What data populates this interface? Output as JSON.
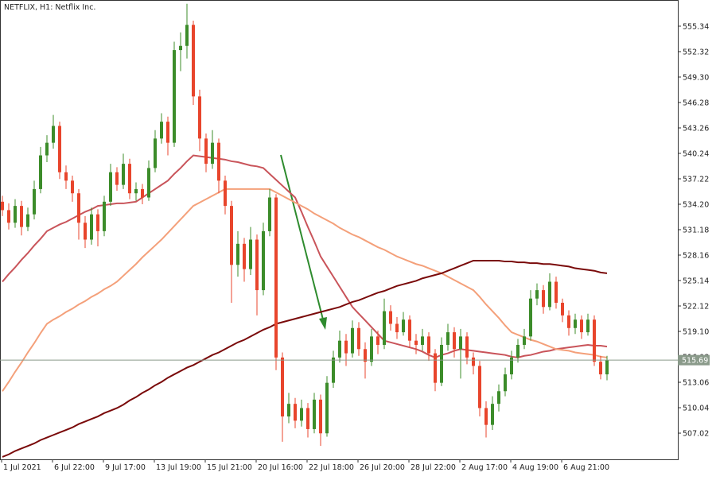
{
  "chart_data": {
    "type": "candlestick",
    "title": "NETFLIX, H1:  Netflix Inc.",
    "categories": [
      "1 Jul 2021",
      null,
      null,
      null,
      null,
      null,
      null,
      null,
      "6 Jul 22:00",
      null,
      null,
      null,
      null,
      null,
      null,
      null,
      "9 Jul 17:00",
      null,
      null,
      null,
      null,
      null,
      null,
      null,
      "13 Jul 19:00",
      null,
      null,
      null,
      null,
      null,
      null,
      null,
      "15 Jul 21:00",
      null,
      null,
      null,
      null,
      null,
      null,
      null,
      "20 Jul 16:00",
      null,
      null,
      null,
      null,
      null,
      null,
      null,
      "22 Jul 18:00",
      null,
      null,
      null,
      null,
      null,
      null,
      null,
      "26 Jul 20:00",
      null,
      null,
      null,
      null,
      null,
      null,
      null,
      "28 Jul 22:00",
      null,
      null,
      null,
      null,
      null,
      null,
      null,
      "2 Aug 17:00",
      null,
      null,
      null,
      null,
      null,
      null,
      null,
      "4 Aug 19:00",
      null,
      null,
      null,
      null,
      null,
      null,
      null,
      "6 Aug 21:00",
      null,
      null,
      null,
      null,
      null,
      null,
      null
    ],
    "open": [
      534.5,
      533.5,
      532.0,
      534.0,
      531.5,
      533.0,
      536.0,
      540.0,
      541.5,
      543.5,
      538.0,
      537.0,
      535.5,
      532.0,
      530.0,
      533.0,
      531.0,
      534.5,
      538.0,
      536.5,
      539.0,
      535.5,
      536.0,
      535.0,
      538.5,
      542.0,
      544.0,
      541.5,
      552.5,
      553.0,
      555.5,
      547.0,
      542.0,
      539.0,
      541.5,
      537.0,
      534.0,
      527.0,
      529.5,
      526.5,
      530.0,
      524.0,
      531.0,
      535.0,
      516.0,
      509.0,
      510.5,
      508.5,
      510.0,
      507.5,
      511.0,
      507.0,
      513.0,
      516.0,
      518.0,
      516.5,
      519.5,
      517.0,
      515.5,
      518.5,
      517.5,
      521.5,
      520.0,
      519.0,
      520.5,
      518.0,
      517.5,
      518.5,
      516.5,
      513.0,
      517.5,
      519.0,
      517.0,
      518.5,
      516.0,
      515.0,
      510.0,
      508.0,
      510.5,
      512.0,
      514.0,
      516.0,
      517.5,
      518.5,
      523.0,
      524.0,
      522.0,
      525.0,
      522.5,
      521.0,
      519.5,
      520.5,
      519.0,
      520.5,
      515.5,
      514.0
    ],
    "high": [
      535.2,
      534.3,
      534.8,
      534.6,
      533.8,
      537.0,
      541.0,
      542.4,
      544.8,
      544.0,
      538.8,
      537.6,
      536.0,
      532.8,
      533.8,
      533.6,
      535.2,
      539.0,
      538.6,
      540.2,
      539.6,
      536.8,
      536.6,
      539.4,
      543.0,
      545.0,
      544.6,
      553.5,
      554.6,
      558.0,
      556.0,
      547.8,
      542.6,
      543.0,
      542.0,
      537.6,
      534.6,
      531.0,
      530.2,
      531.5,
      530.6,
      532.0,
      536.0,
      535.4,
      516.6,
      511.8,
      511.2,
      511.0,
      510.6,
      511.8,
      511.6,
      513.8,
      516.8,
      519.2,
      518.8,
      520.4,
      520.2,
      517.8,
      519.4,
      519.2,
      523.0,
      522.2,
      520.8,
      521.4,
      521.0,
      518.8,
      519.4,
      519.0,
      517.0,
      518.4,
      520.0,
      519.6,
      519.4,
      519.0,
      516.6,
      515.6,
      510.8,
      511.4,
      512.8,
      514.8,
      516.8,
      518.2,
      519.4,
      524.0,
      524.8,
      524.6,
      526.0,
      525.6,
      523.0,
      521.6,
      521.2,
      521.0,
      521.2,
      521.0,
      516.2,
      516.2
    ],
    "low": [
      532.8,
      531.2,
      531.4,
      530.5,
      531.0,
      532.4,
      535.5,
      539.2,
      540.8,
      537.2,
      536.0,
      534.5,
      530.0,
      529.0,
      529.4,
      529.2,
      530.4,
      534.0,
      535.8,
      536.0,
      534.8,
      534.6,
      534.2,
      534.6,
      538.0,
      541.4,
      540.0,
      541.0,
      550.0,
      551.5,
      546.0,
      540.5,
      538.0,
      538.4,
      535.5,
      533.0,
      522.5,
      525.6,
      525.0,
      525.8,
      521.0,
      523.4,
      530.4,
      514.5,
      506.0,
      508.2,
      507.6,
      507.8,
      506.5,
      507.0,
      505.5,
      506.6,
      512.4,
      515.4,
      515.0,
      516.0,
      516.2,
      513.5,
      515.0,
      516.4,
      517.0,
      519.2,
      518.2,
      518.6,
      517.2,
      516.4,
      516.8,
      515.6,
      512.0,
      512.6,
      516.8,
      516.0,
      513.5,
      515.2,
      514.0,
      509.0,
      506.5,
      507.4,
      509.6,
      511.4,
      513.4,
      515.4,
      517.0,
      518.0,
      522.2,
      521.2,
      521.6,
      521.8,
      520.2,
      518.6,
      518.8,
      518.2,
      518.6,
      515.0,
      513.4,
      513.3
    ],
    "close": [
      533.5,
      532.0,
      534.0,
      531.5,
      533.0,
      536.0,
      540.0,
      541.5,
      543.5,
      538.0,
      537.0,
      535.5,
      532.0,
      530.0,
      533.0,
      531.0,
      534.5,
      538.0,
      536.5,
      539.0,
      535.5,
      536.0,
      535.0,
      538.5,
      542.0,
      544.0,
      541.5,
      552.5,
      553.0,
      555.5,
      547.0,
      542.0,
      539.0,
      541.5,
      537.0,
      534.0,
      527.0,
      529.5,
      526.5,
      530.0,
      524.0,
      531.0,
      535.0,
      516.0,
      509.0,
      510.5,
      508.5,
      510.0,
      507.5,
      511.0,
      507.0,
      513.0,
      516.0,
      518.0,
      516.5,
      519.5,
      517.0,
      515.5,
      518.5,
      517.5,
      521.5,
      520.0,
      519.0,
      520.5,
      518.0,
      517.5,
      518.5,
      516.5,
      513.0,
      517.5,
      519.0,
      517.0,
      518.5,
      516.0,
      515.0,
      510.0,
      508.0,
      510.5,
      512.0,
      514.0,
      516.0,
      517.5,
      518.5,
      523.0,
      524.0,
      522.0,
      525.0,
      522.5,
      521.0,
      519.5,
      520.5,
      519.0,
      520.5,
      515.5,
      514.0,
      515.69
    ],
    "up_color": "#3c8c2a",
    "down_color": "#e8452c",
    "price_line_color": "#8a9a8a",
    "lines": [
      {
        "color": "#c9545a",
        "values": [
          525.0,
          525.9,
          526.7,
          527.6,
          528.4,
          529.3,
          530.1,
          531.0,
          531.4,
          531.8,
          532.1,
          532.5,
          532.9,
          533.3,
          533.6,
          534.0,
          534.1,
          534.2,
          534.3,
          534.3,
          534.4,
          534.5,
          535.0,
          535.5,
          536.0,
          536.5,
          537.0,
          537.8,
          538.5,
          539.3,
          540.0,
          539.9,
          539.8,
          539.7,
          539.6,
          539.5,
          539.3,
          539.2,
          539.0,
          538.8,
          538.7,
          538.5,
          537.8,
          537.1,
          536.4,
          535.7,
          535.0,
          533.3,
          531.5,
          529.8,
          528.0,
          526.8,
          525.6,
          524.4,
          523.2,
          522.0,
          521.2,
          520.4,
          519.6,
          518.8,
          518.0,
          517.8,
          517.6,
          517.4,
          517.2,
          517.0,
          516.7,
          516.3,
          516.0,
          516.3,
          516.5,
          516.8,
          517.0,
          516.9,
          516.8,
          516.7,
          516.6,
          516.5,
          516.4,
          516.3,
          516.1,
          516.0,
          516.2,
          516.3,
          516.5,
          516.7,
          516.8,
          517.0,
          517.1,
          517.2,
          517.3,
          517.4,
          517.5,
          517.4,
          517.4,
          517.3
        ]
      },
      {
        "color": "#f4a07a",
        "values": [
          512.0,
          513.1,
          514.3,
          515.4,
          516.6,
          517.7,
          518.9,
          520.0,
          520.5,
          520.9,
          521.4,
          521.8,
          522.3,
          522.7,
          523.2,
          523.6,
          524.1,
          524.5,
          525.0,
          525.7,
          526.4,
          527.1,
          527.9,
          528.6,
          529.3,
          530.0,
          530.8,
          531.6,
          532.4,
          533.2,
          534.0,
          534.4,
          534.8,
          535.2,
          535.6,
          536.0,
          536.0,
          536.0,
          536.0,
          536.0,
          536.0,
          536.0,
          536.0,
          535.6,
          535.2,
          534.8,
          534.4,
          534.0,
          533.6,
          533.1,
          532.7,
          532.3,
          531.9,
          531.4,
          531.0,
          530.6,
          530.3,
          529.9,
          529.5,
          529.1,
          528.8,
          528.4,
          528.0,
          527.7,
          527.4,
          527.1,
          526.9,
          526.6,
          526.3,
          526.0,
          525.6,
          525.2,
          524.8,
          524.4,
          524.0,
          523.2,
          522.3,
          521.5,
          520.7,
          519.8,
          519.0,
          518.7,
          518.4,
          518.1,
          517.9,
          517.6,
          517.3,
          517.0,
          516.9,
          516.8,
          516.6,
          516.5,
          516.4,
          516.3,
          516.1,
          516.0
        ]
      },
      {
        "color": "#7a0a0a",
        "values": [
          504.2,
          504.5,
          504.9,
          505.2,
          505.5,
          505.8,
          506.2,
          506.5,
          506.8,
          507.1,
          507.4,
          507.7,
          508.1,
          508.4,
          508.7,
          509.0,
          509.4,
          509.7,
          510.0,
          510.4,
          510.9,
          511.3,
          511.8,
          512.2,
          512.7,
          513.1,
          513.6,
          514.0,
          514.4,
          514.8,
          515.1,
          515.5,
          515.9,
          516.3,
          516.6,
          517.0,
          517.4,
          517.8,
          518.1,
          518.5,
          518.9,
          519.3,
          519.6,
          520.0,
          520.2,
          520.4,
          520.6,
          520.8,
          521.0,
          521.2,
          521.4,
          521.6,
          521.8,
          522.0,
          522.3,
          522.6,
          522.8,
          523.1,
          523.4,
          523.7,
          523.9,
          524.2,
          524.5,
          524.7,
          524.9,
          525.1,
          525.4,
          525.6,
          525.8,
          526.0,
          526.3,
          526.6,
          526.9,
          527.2,
          527.5,
          527.5,
          527.5,
          527.5,
          527.5,
          527.4,
          527.4,
          527.3,
          527.3,
          527.2,
          527.2,
          527.1,
          527.1,
          527.0,
          526.9,
          526.8,
          526.6,
          526.5,
          526.4,
          526.3,
          526.1,
          526.0
        ]
      }
    ],
    "ylim": [
      503.91,
      558.45
    ],
    "yticks": [
      {
        "value": 507.02,
        "label": "507.02"
      },
      {
        "value": 510.04,
        "label": "510.04"
      },
      {
        "value": 513.06,
        "label": "513.06"
      },
      {
        "value": 516.08,
        "label": "516.08"
      },
      {
        "value": 519.1,
        "label": "519.10"
      },
      {
        "value": 522.12,
        "label": "522.12"
      },
      {
        "value": 525.14,
        "label": "525.14"
      },
      {
        "value": 528.16,
        "label": "528.16"
      },
      {
        "value": 531.18,
        "label": "531.18"
      },
      {
        "value": 534.2,
        "label": "534.20"
      },
      {
        "value": 537.22,
        "label": "537.22"
      },
      {
        "value": 540.24,
        "label": "540.24"
      },
      {
        "value": 543.26,
        "label": "543.26"
      },
      {
        "value": 546.28,
        "label": "546.28"
      },
      {
        "value": 549.3,
        "label": "549.30"
      },
      {
        "value": 552.32,
        "label": "552.32"
      },
      {
        "value": 555.34,
        "label": "555.34"
      }
    ]
  }
}
